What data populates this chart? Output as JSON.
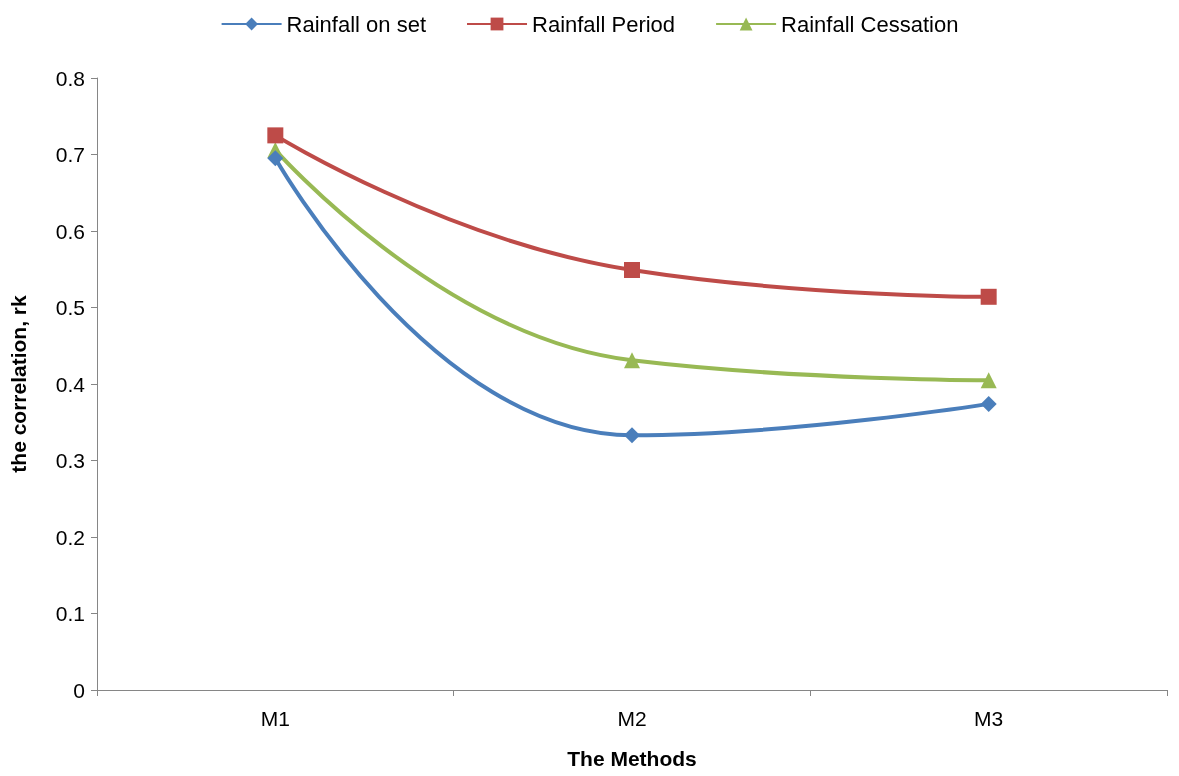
{
  "chart_data": {
    "type": "line",
    "xlabel": "The Methods",
    "ylabel": "the correlation, rk",
    "categories": [
      "M1",
      "M2",
      "M3"
    ],
    "series": [
      {
        "name": "Rainfall on set",
        "color": "#4a7ebb",
        "values": [
          0.695,
          0.333,
          0.374
        ],
        "marker": "diamond"
      },
      {
        "name": "Rainfall Period",
        "color": "#be4b48",
        "values": [
          0.725,
          0.549,
          0.514
        ],
        "marker": "square"
      },
      {
        "name": "Rainfall Cessation",
        "color": "#98b954",
        "values": [
          0.706,
          0.431,
          0.405
        ],
        "marker": "triangle"
      }
    ],
    "ylim": [
      0,
      0.8
    ],
    "yticks": [
      0,
      0.1,
      0.2,
      0.3,
      0.4,
      0.5,
      0.6,
      0.7,
      0.8
    ],
    "grid": false,
    "legend": "top",
    "line_style": "solid"
  }
}
